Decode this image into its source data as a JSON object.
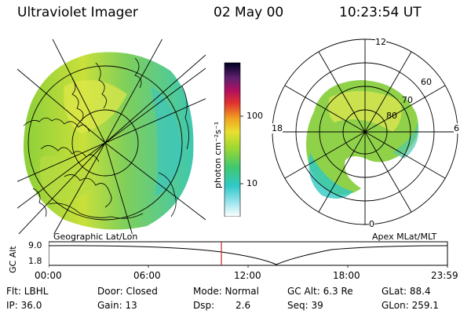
{
  "header": {
    "instrument": "Ultraviolet Imager",
    "date": "02 May 00",
    "time": "10:23:54 UT"
  },
  "colorbar": {
    "unit_label": "photon cm⁻²s⁻¹",
    "ticks": [
      "100",
      "10"
    ]
  },
  "geo_panel": {
    "label": "Geographic Lat/Lon"
  },
  "apex_panel": {
    "label": "Apex MLat/MLT",
    "mlt_labels": {
      "top": "12",
      "left": "18",
      "right": "6",
      "bottom": "0"
    },
    "lat_labels": [
      "60",
      "70",
      "80"
    ]
  },
  "altitude_plot": {
    "axis_label": "GC Alt",
    "y_ticks": [
      "9.0",
      "1.8"
    ],
    "x_ticks": [
      "00:00",
      "06:00",
      "12:00",
      "18:00",
      "23:59"
    ]
  },
  "info": {
    "filter": "Flt: LBHL",
    "ip": "IP: 36.0",
    "door": "Door: Closed",
    "gain": "Gain: 13",
    "mode": "Mode: Normal",
    "dsp_label": "Dsp:",
    "dsp_value": "2.6",
    "gc_alt": "GC Alt: 6.3 Re",
    "seq": "Seq: 39",
    "glat": "GLat: 88.4",
    "glon": "GLon: 259.1"
  }
}
